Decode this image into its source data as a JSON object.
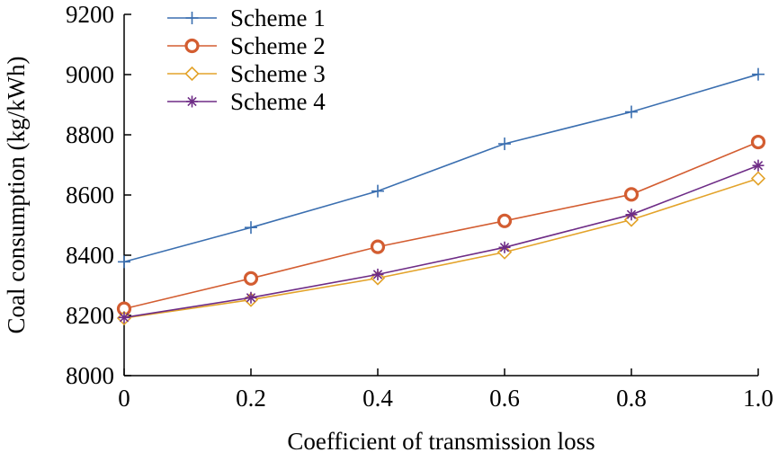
{
  "chart_data": {
    "type": "line",
    "title": "",
    "xlabel": "Coefficient of transmission loss",
    "ylabel": "Coal consumption (kg/kWh)",
    "xlim": [
      0,
      1.0
    ],
    "ylim": [
      8000,
      9200
    ],
    "x_ticks": [
      "0",
      "0.2",
      "0.4",
      "0.6",
      "0.8",
      "1.0"
    ],
    "y_ticks": [
      "8000",
      "8200",
      "8400",
      "8600",
      "8800",
      "9000",
      "9200"
    ],
    "x": [
      0,
      0.2,
      0.4,
      0.6,
      0.8,
      1.0
    ],
    "grid": false,
    "legend_position": "top-left",
    "series": [
      {
        "name": "Scheme 1",
        "values": [
          8378,
          8492,
          8613,
          8770,
          8876,
          9001
        ],
        "color": "#3b6fb0",
        "marker": "plus"
      },
      {
        "name": "Scheme 2",
        "values": [
          8222,
          8323,
          8428,
          8514,
          8602,
          8776
        ],
        "color": "#d35d31",
        "marker": "circle"
      },
      {
        "name": "Scheme 3",
        "values": [
          8191,
          8252,
          8324,
          8410,
          8518,
          8655
        ],
        "color": "#e3a32a",
        "marker": "diamond"
      },
      {
        "name": "Scheme 4",
        "values": [
          8193,
          8259,
          8336,
          8426,
          8535,
          8698
        ],
        "color": "#6e2c86",
        "marker": "star"
      }
    ]
  }
}
